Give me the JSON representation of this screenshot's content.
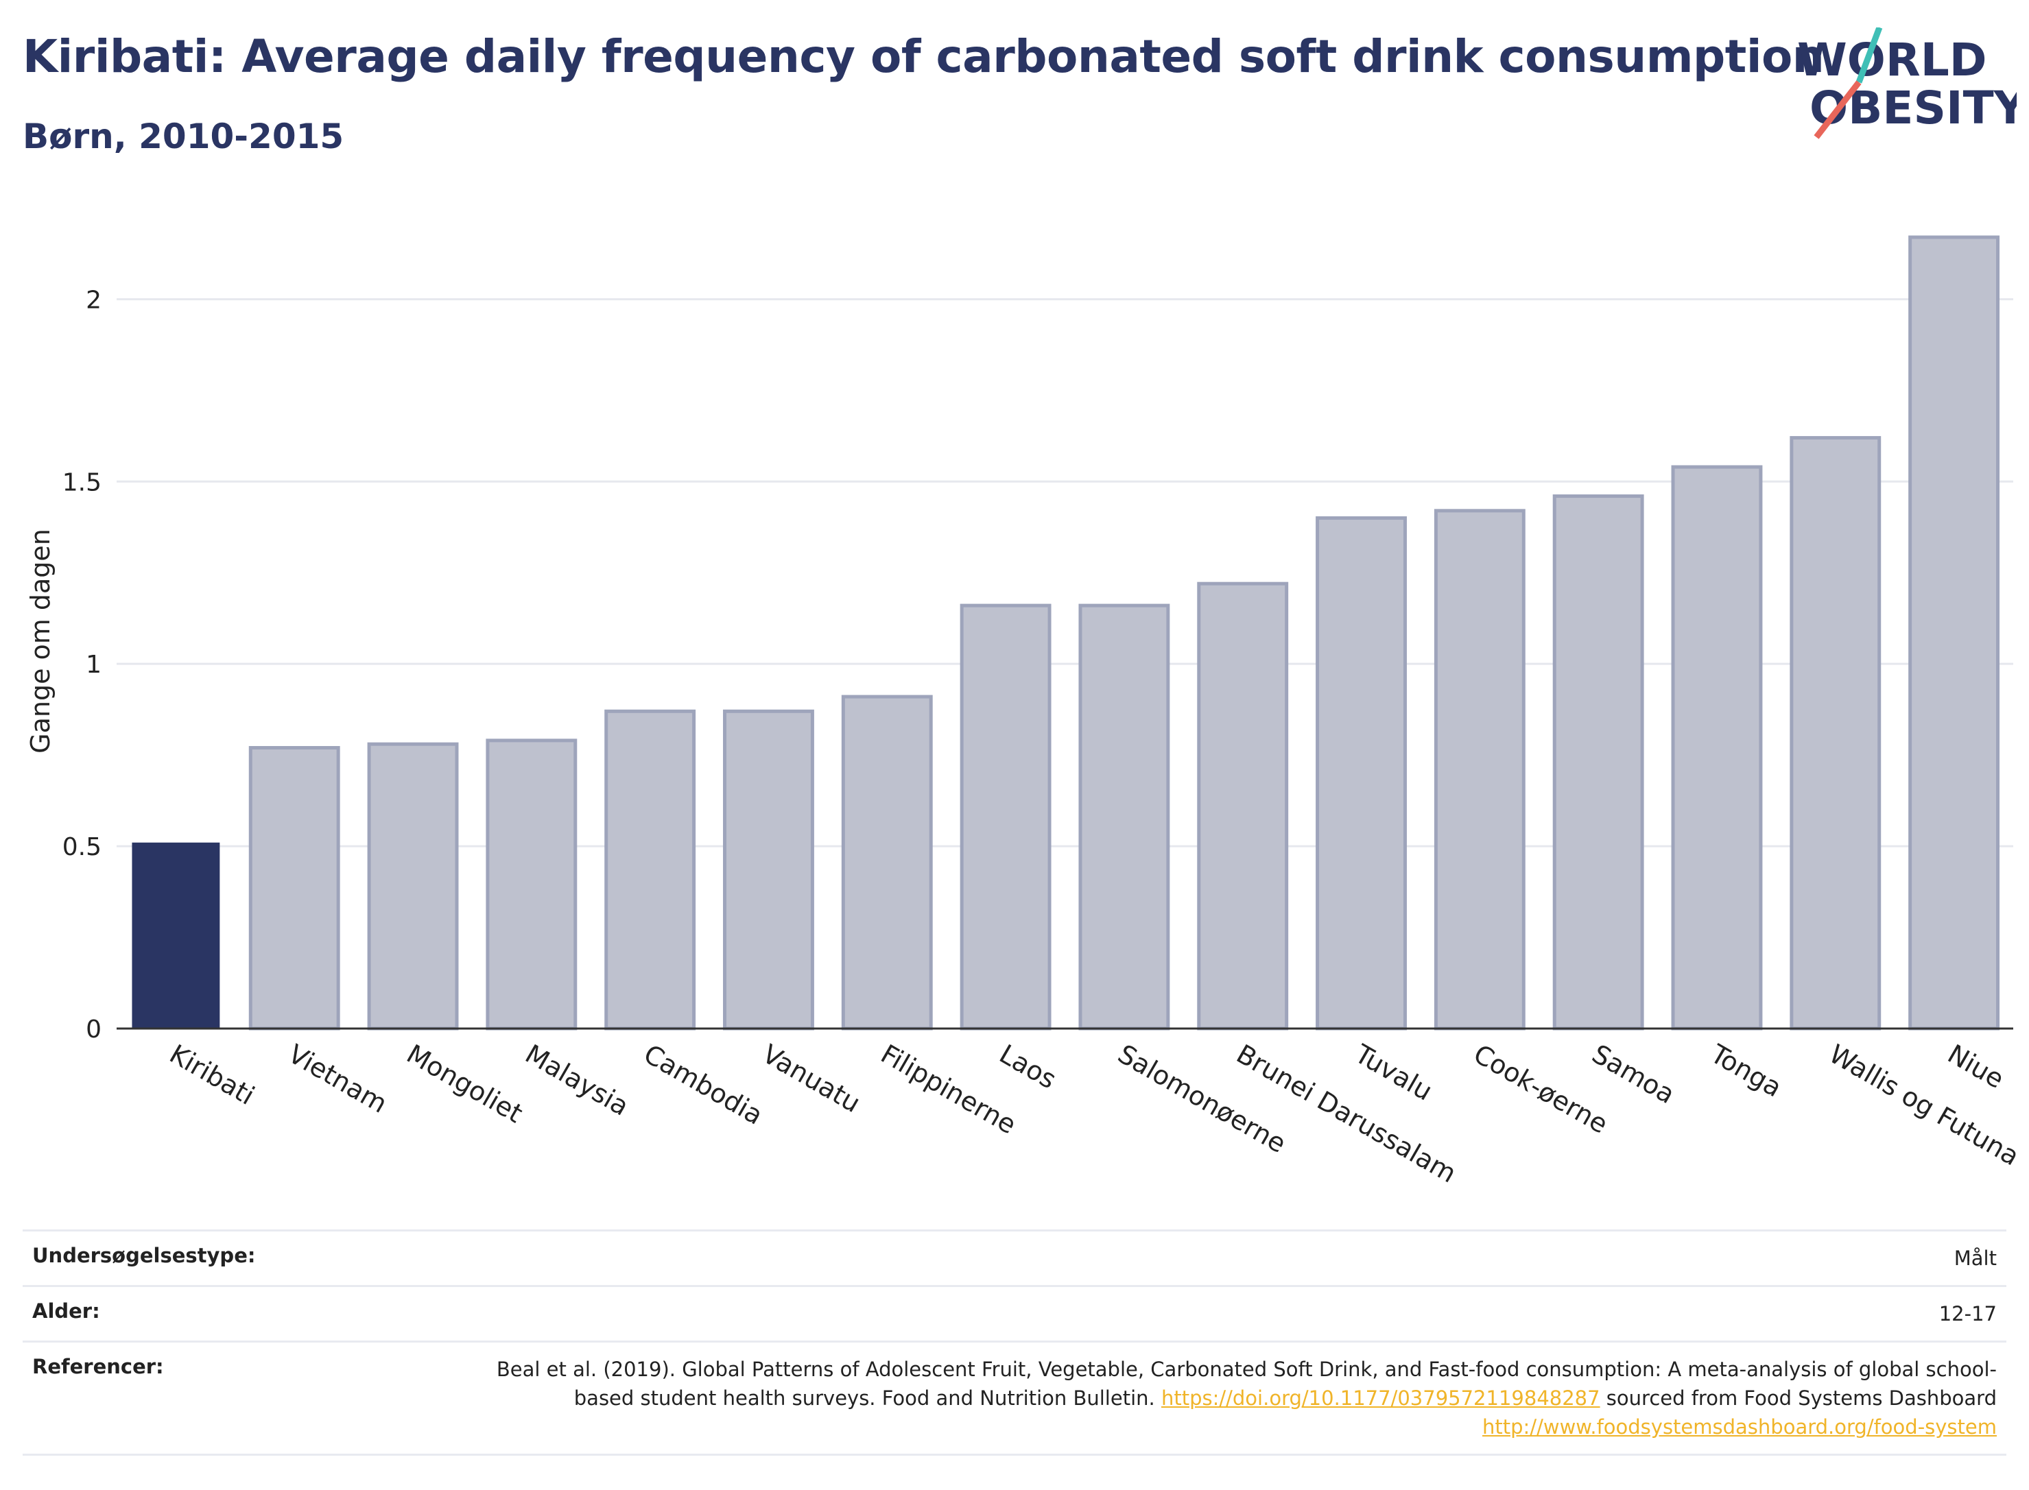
{
  "header": {
    "title": "Kiribati: Average daily frequency of carbonated soft drink consumption",
    "subtitle": "Børn, 2010-2015"
  },
  "logo": {
    "line1": "WORLD",
    "line2": "OBESITY"
  },
  "colors": {
    "highlight_bar": "#2a3563",
    "other_bar": "#bec1ce",
    "bar_outline": "#9ea4bb",
    "logo_teal": "#3fbfb6",
    "logo_red": "#e8665a",
    "link": "#f0b429"
  },
  "chart_data": {
    "type": "bar",
    "categories": [
      "Kiribati",
      "Vietnam",
      "Mongoliet",
      "Malaysia",
      "Cambodia",
      "Vanuatu",
      "Filippinerne",
      "Laos",
      "Salomonøerne",
      "Brunei Darussalam",
      "Tuvalu",
      "Cook-øerne",
      "Samoa",
      "Tonga",
      "Wallis og Futuna",
      "Niue"
    ],
    "values": [
      0.51,
      0.77,
      0.78,
      0.79,
      0.87,
      0.87,
      0.91,
      1.16,
      1.16,
      1.22,
      1.4,
      1.42,
      1.46,
      1.54,
      1.62,
      2.17
    ],
    "highlight": "Kiribati",
    "ylabel": "Gange om dagen",
    "xlabel": "",
    "ylim": [
      0,
      2.2
    ],
    "yticks": [
      0,
      0.5,
      1,
      1.5,
      2
    ],
    "ytick_labels": [
      "0",
      "0.5",
      "1",
      "1.5",
      "2"
    ],
    "grid": true
  },
  "meta": {
    "survey_label": "Undersøgelsestype:",
    "survey_value": "Målt",
    "age_label": "Alder:",
    "age_value": "12-17",
    "ref_label": "Referencer:",
    "ref_text1": "Beal et al. (2019). Global Patterns of Adolescent Fruit, Vegetable, Carbonated Soft Drink, and Fast-food consumption: A meta-analysis of global school-based student health surveys. Food and Nutrition Bulletin.",
    "ref_link1": "https://doi.org/10.1177/0379572119848287",
    "ref_text2": "sourced from Food Systems Dashboard",
    "ref_link2": "http://www.foodsystemsdashboard.org/food-system"
  }
}
